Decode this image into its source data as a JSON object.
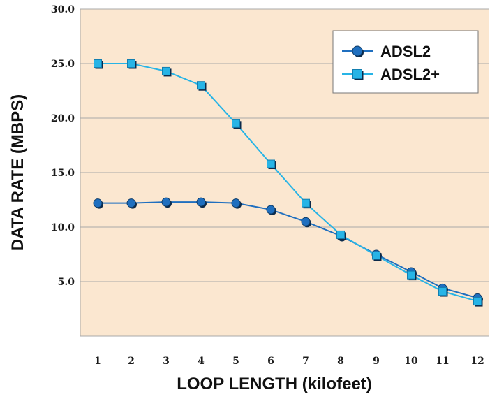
{
  "chart_data": {
    "type": "line",
    "xlabel": "LOOP LENGTH (kilofeet)",
    "ylabel": "DATA RATE (MBPS)",
    "x": [
      1,
      2,
      3,
      4,
      5,
      6,
      7,
      8,
      9,
      10,
      11,
      12
    ],
    "x_tick_labels": [
      "1",
      "2",
      "3",
      "4",
      "5",
      "6",
      "7",
      "8",
      "9",
      "10",
      "11",
      "12"
    ],
    "y_ticks": [
      5.0,
      10.0,
      15.0,
      20.0,
      25.0,
      30.0
    ],
    "y_tick_labels": [
      "5.0",
      "10.0",
      "15.0",
      "20.0",
      "25.0",
      "30.0"
    ],
    "ylim": [
      0,
      30
    ],
    "grid": "horizontal",
    "legend_position": "top-right",
    "series": [
      {
        "name": "ADSL2",
        "marker": "circle",
        "color": "#1f6fbf",
        "values": [
          12.2,
          12.2,
          12.3,
          12.3,
          12.2,
          11.6,
          10.5,
          9.2,
          7.5,
          5.9,
          4.4,
          3.5
        ]
      },
      {
        "name": "ADSL2+",
        "marker": "square",
        "color": "#27b4e6",
        "values": [
          25.0,
          25.0,
          24.3,
          23.0,
          19.5,
          15.8,
          12.2,
          9.3,
          7.4,
          5.6,
          4.1,
          3.2
        ]
      }
    ]
  },
  "colors": {
    "plot_background": "#fbe7d0",
    "gridline": "#a8a8a8",
    "axis_text": "#1a1a1a"
  }
}
